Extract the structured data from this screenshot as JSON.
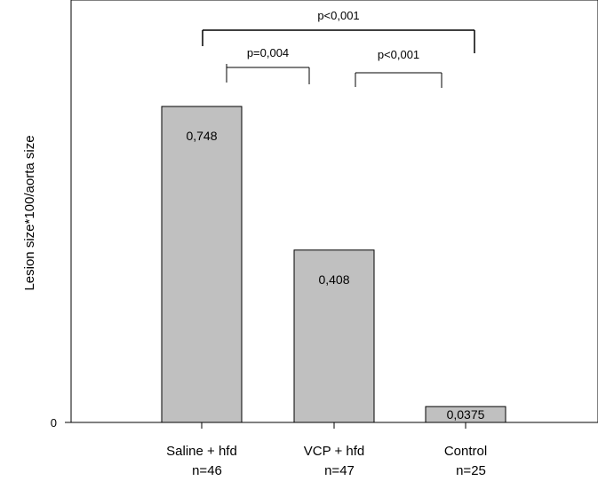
{
  "chart_data": {
    "type": "bar",
    "title": "",
    "xlabel": "",
    "ylabel": "Lesion size*100/aorta size",
    "ylim": [
      0,
      1.0
    ],
    "y_ticks": [
      {
        "value": 0,
        "label": "0"
      }
    ],
    "categories": [
      "Saline + hfd",
      "VCP + hfd",
      "Control"
    ],
    "sample_sizes": [
      "n=46",
      "n=47",
      "n=25"
    ],
    "values": [
      0.748,
      0.408,
      0.0375
    ],
    "data_labels": [
      "0,748",
      "0,408",
      "0,0375"
    ],
    "bar_color": "#c0c0c0",
    "grid": false,
    "legend": "none",
    "annotations": [
      {
        "label": "p=0,004",
        "from": "Saline + hfd",
        "to": "VCP + hfd"
      },
      {
        "label": "p<0,001",
        "from": "VCP + hfd",
        "to": "Control"
      },
      {
        "label": "p<0,001",
        "from": "Saline + hfd",
        "to": "Control"
      }
    ]
  }
}
